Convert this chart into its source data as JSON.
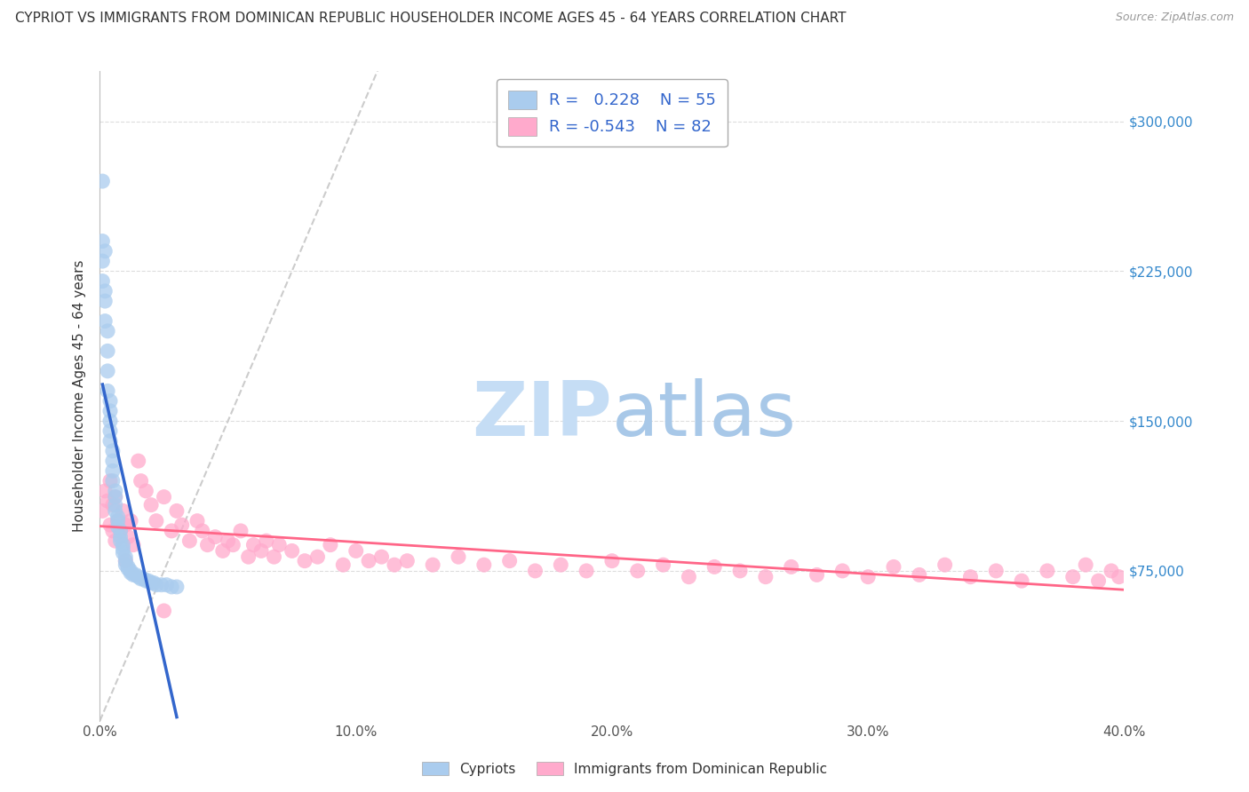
{
  "title": "CYPRIOT VS IMMIGRANTS FROM DOMINICAN REPUBLIC HOUSEHOLDER INCOME AGES 45 - 64 YEARS CORRELATION CHART",
  "source": "Source: ZipAtlas.com",
  "ylabel": "Householder Income Ages 45 - 64 years",
  "xlim": [
    0.0,
    0.4
  ],
  "ylim": [
    0,
    325000
  ],
  "xticks": [
    0.0,
    0.1,
    0.2,
    0.3,
    0.4
  ],
  "xticklabels": [
    "0.0%",
    "10.0%",
    "20.0%",
    "30.0%",
    "40.0%"
  ],
  "yticks": [
    75000,
    150000,
    225000,
    300000
  ],
  "yticklabels": [
    "$75,000",
    "$150,000",
    "$225,000",
    "$300,000"
  ],
  "cypriot_R": 0.228,
  "cypriot_N": 55,
  "dominican_R": -0.543,
  "dominican_N": 82,
  "cypriot_color": "#aaccee",
  "dominican_color": "#ffaacc",
  "cypriot_line_color": "#3366cc",
  "dominican_line_color": "#ff6688",
  "diagonal_color": "#cccccc",
  "background_color": "#ffffff",
  "watermark_zip": "ZIP",
  "watermark_atlas": "atlas",
  "legend_labels": [
    "Cypriots",
    "Immigrants from Dominican Republic"
  ],
  "cypriot_x": [
    0.001,
    0.001,
    0.001,
    0.001,
    0.002,
    0.002,
    0.002,
    0.002,
    0.003,
    0.003,
    0.003,
    0.003,
    0.004,
    0.004,
    0.004,
    0.004,
    0.004,
    0.005,
    0.005,
    0.005,
    0.005,
    0.006,
    0.006,
    0.006,
    0.006,
    0.007,
    0.007,
    0.007,
    0.008,
    0.008,
    0.008,
    0.009,
    0.009,
    0.009,
    0.01,
    0.01,
    0.01,
    0.011,
    0.011,
    0.012,
    0.012,
    0.013,
    0.014,
    0.015,
    0.016,
    0.017,
    0.018,
    0.019,
    0.02,
    0.021,
    0.022,
    0.024,
    0.026,
    0.028,
    0.03
  ],
  "cypriot_y": [
    270000,
    240000,
    230000,
    220000,
    235000,
    215000,
    210000,
    200000,
    195000,
    185000,
    175000,
    165000,
    160000,
    155000,
    150000,
    145000,
    140000,
    135000,
    130000,
    125000,
    120000,
    115000,
    112000,
    108000,
    105000,
    102000,
    100000,
    97000,
    95000,
    92000,
    90000,
    88000,
    86000,
    84000,
    82000,
    80000,
    78000,
    77000,
    76000,
    75000,
    74000,
    73000,
    73000,
    72000,
    71000,
    71000,
    70000,
    70000,
    69000,
    69000,
    68000,
    68000,
    68000,
    67000,
    67000
  ],
  "dominican_x": [
    0.001,
    0.002,
    0.003,
    0.004,
    0.004,
    0.005,
    0.005,
    0.006,
    0.006,
    0.007,
    0.008,
    0.009,
    0.01,
    0.011,
    0.012,
    0.013,
    0.015,
    0.016,
    0.018,
    0.02,
    0.022,
    0.025,
    0.028,
    0.03,
    0.032,
    0.035,
    0.038,
    0.04,
    0.042,
    0.045,
    0.048,
    0.05,
    0.052,
    0.055,
    0.058,
    0.06,
    0.063,
    0.065,
    0.068,
    0.07,
    0.075,
    0.08,
    0.085,
    0.09,
    0.095,
    0.1,
    0.105,
    0.11,
    0.115,
    0.12,
    0.13,
    0.14,
    0.15,
    0.16,
    0.17,
    0.18,
    0.19,
    0.2,
    0.21,
    0.22,
    0.23,
    0.24,
    0.25,
    0.26,
    0.27,
    0.28,
    0.29,
    0.3,
    0.31,
    0.32,
    0.33,
    0.34,
    0.35,
    0.36,
    0.37,
    0.38,
    0.385,
    0.39,
    0.395,
    0.398,
    0.01,
    0.025
  ],
  "dominican_y": [
    105000,
    115000,
    110000,
    120000,
    98000,
    108000,
    95000,
    112000,
    90000,
    100000,
    95000,
    105000,
    98000,
    92000,
    100000,
    88000,
    130000,
    120000,
    115000,
    108000,
    100000,
    112000,
    95000,
    105000,
    98000,
    90000,
    100000,
    95000,
    88000,
    92000,
    85000,
    90000,
    88000,
    95000,
    82000,
    88000,
    85000,
    90000,
    82000,
    88000,
    85000,
    80000,
    82000,
    88000,
    78000,
    85000,
    80000,
    82000,
    78000,
    80000,
    78000,
    82000,
    78000,
    80000,
    75000,
    78000,
    75000,
    80000,
    75000,
    78000,
    72000,
    77000,
    75000,
    72000,
    77000,
    73000,
    75000,
    72000,
    77000,
    73000,
    78000,
    72000,
    75000,
    70000,
    75000,
    72000,
    78000,
    70000,
    75000,
    72000,
    80000,
    55000
  ]
}
